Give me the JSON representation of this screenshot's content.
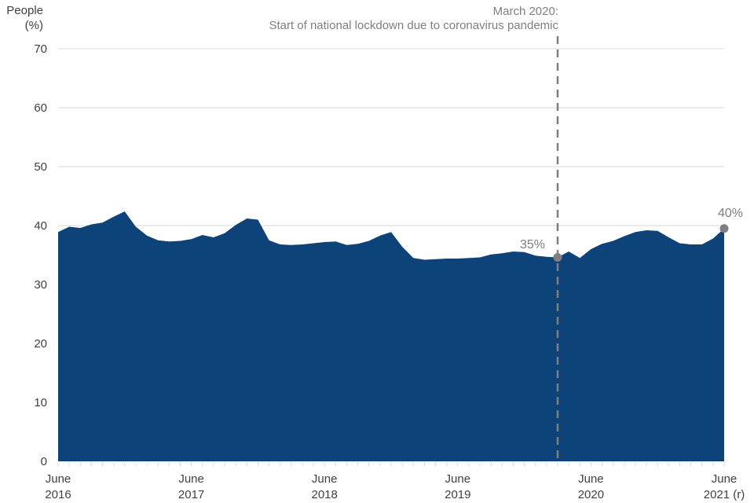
{
  "y_axis": {
    "title_line1": "People",
    "title_line2": "(%)",
    "ticks": [
      0,
      10,
      20,
      30,
      40,
      50,
      60,
      70
    ]
  },
  "x_axis": {
    "ticks": [
      {
        "index": 0,
        "line1": "June",
        "line2": "2016"
      },
      {
        "index": 12,
        "line1": "June",
        "line2": "2017"
      },
      {
        "index": 24,
        "line1": "June",
        "line2": "2018"
      },
      {
        "index": 36,
        "line1": "June",
        "line2": "2019"
      },
      {
        "index": 48,
        "line1": "June",
        "line2": "2020"
      },
      {
        "index": 60,
        "line1": "June",
        "line2": "2021 (r)"
      }
    ]
  },
  "annotation": {
    "line1": "March 2020:",
    "line2": "Start of national lockdown due to coronavirus pandemic"
  },
  "point_labels": {
    "march_2020": "35%",
    "june_2021": "40%"
  },
  "colors": {
    "area": "#0d4378",
    "grid": "#d9d9d9",
    "tick": "#d9d9d9",
    "axis_text": "#404040",
    "annotation_gray": "#7f7f7f",
    "marker": "#7f7f7f"
  },
  "chart_data": {
    "type": "area",
    "title": "",
    "xlabel": "",
    "ylabel": "People (%)",
    "ylim": [
      0,
      70
    ],
    "grid": true,
    "x": [
      "Jun 2016",
      "Jul 2016",
      "Aug 2016",
      "Sep 2016",
      "Oct 2016",
      "Nov 2016",
      "Dec 2016",
      "Jan 2017",
      "Feb 2017",
      "Mar 2017",
      "Apr 2017",
      "May 2017",
      "Jun 2017",
      "Jul 2017",
      "Aug 2017",
      "Sep 2017",
      "Oct 2017",
      "Nov 2017",
      "Dec 2017",
      "Jan 2018",
      "Feb 2018",
      "Mar 2018",
      "Apr 2018",
      "May 2018",
      "Jun 2018",
      "Jul 2018",
      "Aug 2018",
      "Sep 2018",
      "Oct 2018",
      "Nov 2018",
      "Dec 2018",
      "Jan 2019",
      "Feb 2019",
      "Mar 2019",
      "Apr 2019",
      "May 2019",
      "Jun 2019",
      "Jul 2019",
      "Aug 2019",
      "Sep 2019",
      "Oct 2019",
      "Nov 2019",
      "Dec 2019",
      "Jan 2020",
      "Feb 2020",
      "Mar 2020",
      "Apr 2020",
      "May 2020",
      "Jun 2020",
      "Jul 2020",
      "Aug 2020",
      "Sep 2020",
      "Oct 2020",
      "Nov 2020",
      "Dec 2020",
      "Jan 2021",
      "Feb 2021",
      "Mar 2021",
      "Apr 2021",
      "May 2021",
      "Jun 2021"
    ],
    "values": [
      38.9,
      39.8,
      39.6,
      40.2,
      40.5,
      41.5,
      42.4,
      39.8,
      38.3,
      37.5,
      37.3,
      37.4,
      37.7,
      38.4,
      38.0,
      38.7,
      40.1,
      41.2,
      41.0,
      37.5,
      36.8,
      36.7,
      36.8,
      37.0,
      37.2,
      37.3,
      36.7,
      36.9,
      37.4,
      38.3,
      38.9,
      36.4,
      34.5,
      34.2,
      34.3,
      34.4,
      34.4,
      34.5,
      34.6,
      35.1,
      35.3,
      35.6,
      35.5,
      34.9,
      34.7,
      34.6,
      35.6,
      34.5,
      36.0,
      36.9,
      37.4,
      38.2,
      38.9,
      39.2,
      39.1,
      38.0,
      37.0,
      36.8,
      36.8,
      37.8,
      39.5
    ],
    "vline": {
      "index": 45,
      "x": "Mar 2020",
      "label": "March 2020: Start of national lockdown due to coronavirus pandemic"
    },
    "point_annotations": [
      {
        "index": 45,
        "x": "Mar 2020",
        "label": "35%"
      },
      {
        "index": 60,
        "x": "Jun 2021",
        "label": "40%"
      }
    ],
    "legend": null
  }
}
